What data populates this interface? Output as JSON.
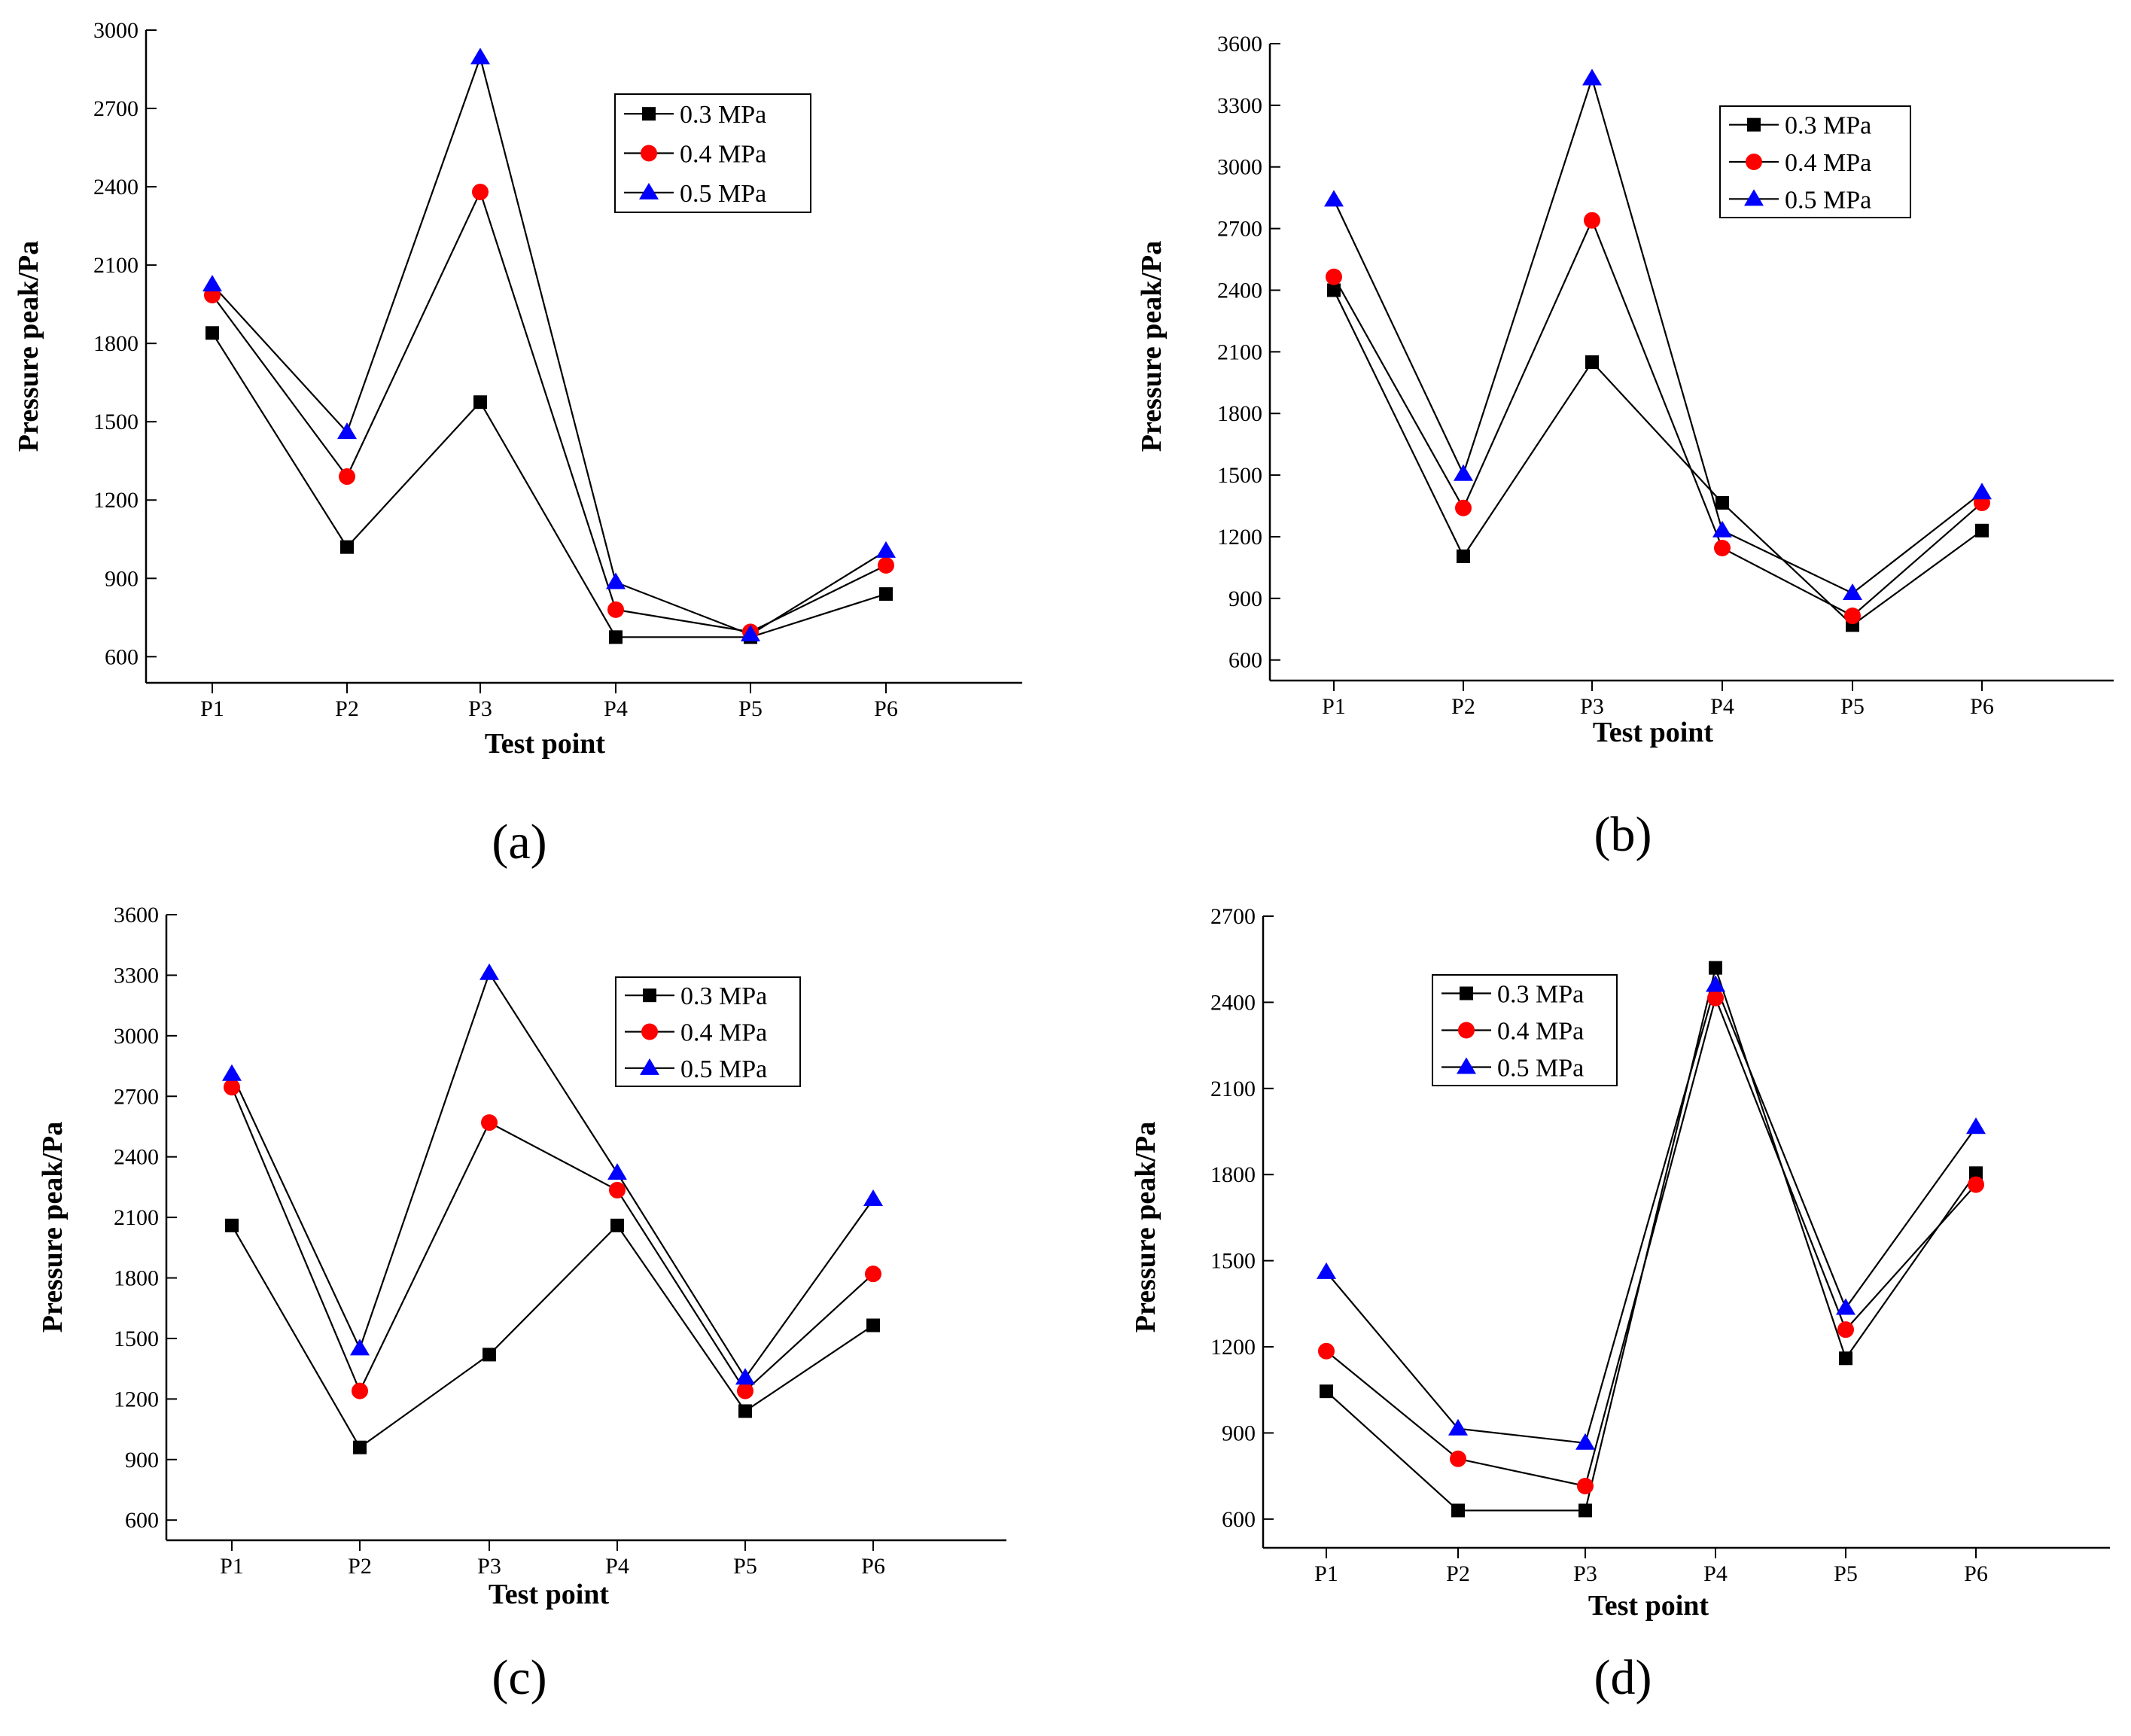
{
  "chart_data": [
    {
      "type": "line",
      "panel_label": "(a)",
      "xlabel": "Test point",
      "ylabel": "Pressure peak/Pa",
      "categories": [
        "P1",
        "P2",
        "P3",
        "P4",
        "P5",
        "P6"
      ],
      "ylim": [
        500,
        3000
      ],
      "yticks": [
        600,
        900,
        1200,
        1500,
        1800,
        2100,
        2400,
        2700,
        3000
      ],
      "legend_position": "top-right",
      "grid": false,
      "series": [
        {
          "name": "0.3 MPa",
          "marker": "square",
          "color": "#000000",
          "values": [
            1840,
            1020,
            1575,
            675,
            675,
            840
          ]
        },
        {
          "name": "0.4 MPa",
          "marker": "circle",
          "color": "#ff0000",
          "values": [
            1985,
            1290,
            2380,
            780,
            695,
            950
          ]
        },
        {
          "name": "0.5 MPa",
          "marker": "triangle",
          "color": "#0000ff",
          "values": [
            2025,
            1460,
            2895,
            885,
            685,
            1005
          ]
        }
      ]
    },
    {
      "type": "line",
      "panel_label": "(b)",
      "xlabel": "Test point",
      "ylabel": "Pressure peak/Pa",
      "categories": [
        "P1",
        "P2",
        "P3",
        "P4",
        "P5",
        "P6"
      ],
      "ylim": [
        500,
        3600
      ],
      "yticks": [
        600,
        900,
        1200,
        1500,
        1800,
        2100,
        2400,
        2700,
        3000,
        3300,
        3600
      ],
      "legend_position": "top-right",
      "grid": false,
      "series": [
        {
          "name": "0.3 MPa",
          "marker": "square",
          "color": "#000000",
          "values": [
            2400,
            1105,
            2050,
            1365,
            770,
            1230
          ]
        },
        {
          "name": "0.4 MPa",
          "marker": "circle",
          "color": "#ff0000",
          "values": [
            2465,
            1340,
            2740,
            1145,
            815,
            1365
          ]
        },
        {
          "name": "0.5 MPa",
          "marker": "triangle",
          "color": "#0000ff",
          "values": [
            2840,
            1505,
            3430,
            1230,
            925,
            1415
          ]
        }
      ]
    },
    {
      "type": "line",
      "panel_label": "(c)",
      "xlabel": "Test point",
      "ylabel": "Pressure peak/Pa",
      "categories": [
        "P1",
        "P2",
        "P3",
        "P4",
        "P5",
        "P6"
      ],
      "ylim": [
        500,
        3600
      ],
      "yticks": [
        600,
        900,
        1200,
        1500,
        1800,
        2100,
        2400,
        2700,
        3000,
        3300,
        3600
      ],
      "legend_position": "top-right",
      "grid": false,
      "series": [
        {
          "name": "0.3 MPa",
          "marker": "square",
          "color": "#000000",
          "values": [
            2060,
            960,
            1420,
            2060,
            1140,
            1565
          ]
        },
        {
          "name": "0.4 MPa",
          "marker": "circle",
          "color": "#ff0000",
          "values": [
            2745,
            1240,
            2570,
            2235,
            1240,
            1820
          ]
        },
        {
          "name": "0.5 MPa",
          "marker": "triangle",
          "color": "#0000ff",
          "values": [
            2810,
            1450,
            3310,
            2320,
            1305,
            2190
          ]
        }
      ]
    },
    {
      "type": "line",
      "panel_label": "(d)",
      "xlabel": "Test point",
      "ylabel": "Pressure peak/Pa",
      "categories": [
        "P1",
        "P2",
        "P3",
        "P4",
        "P5",
        "P6"
      ],
      "ylim": [
        500,
        2700
      ],
      "yticks": [
        600,
        900,
        1200,
        1500,
        1800,
        2100,
        2400,
        2700
      ],
      "legend_position": "top-left",
      "grid": false,
      "series": [
        {
          "name": "0.3 MPa",
          "marker": "square",
          "color": "#000000",
          "values": [
            1045,
            630,
            630,
            2520,
            1160,
            1805
          ]
        },
        {
          "name": "0.4 MPa",
          "marker": "circle",
          "color": "#ff0000",
          "values": [
            1185,
            810,
            715,
            2415,
            1260,
            1765
          ]
        },
        {
          "name": "0.5 MPa",
          "marker": "triangle",
          "color": "#0000ff",
          "values": [
            1460,
            915,
            865,
            2460,
            1335,
            1965
          ]
        }
      ]
    }
  ]
}
